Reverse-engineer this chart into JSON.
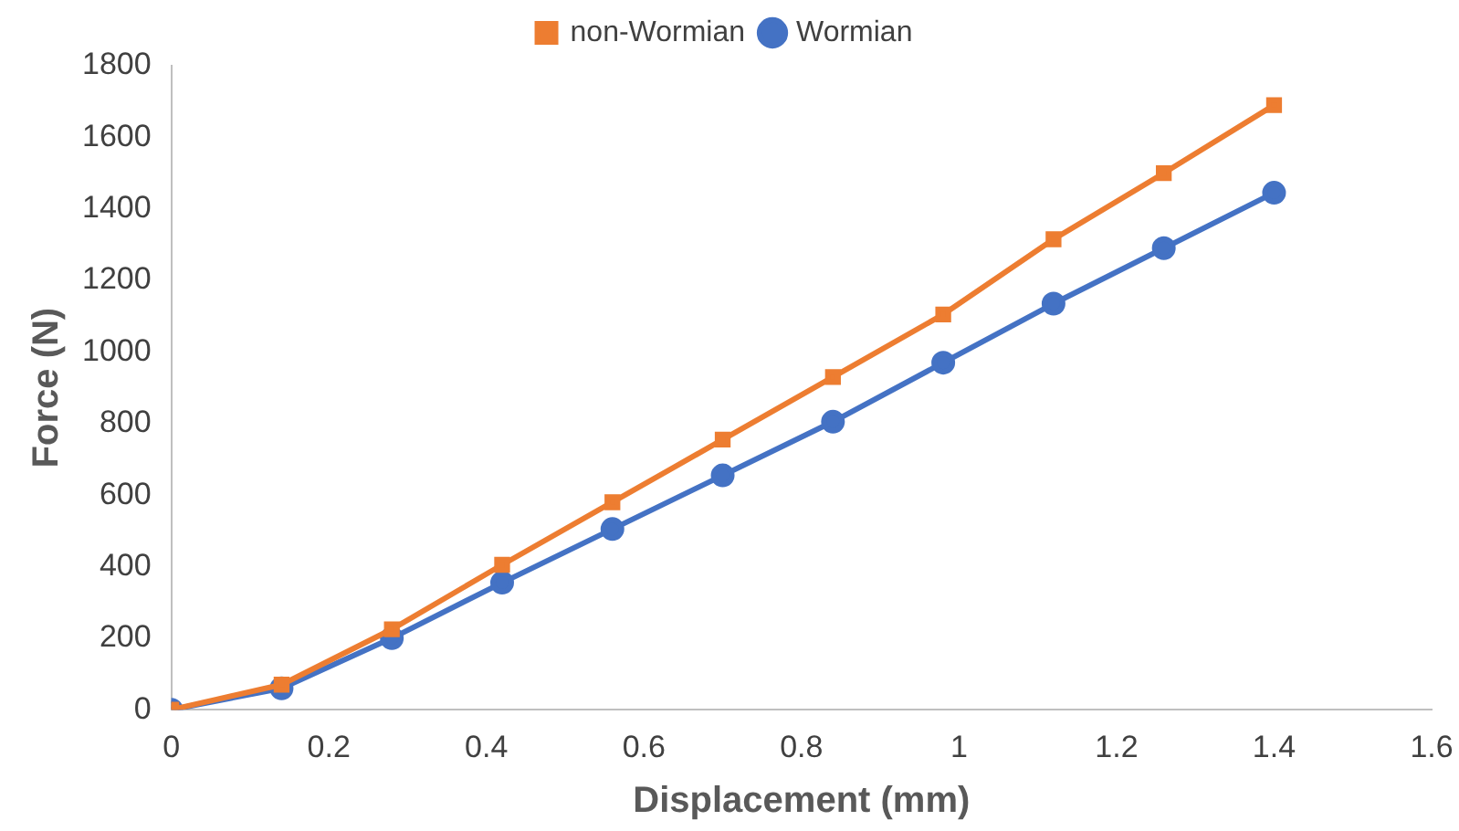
{
  "chart_data": {
    "type": "line",
    "xlabel": "Displacement (mm)",
    "ylabel": "Force (N)",
    "x": [
      0,
      0.14,
      0.28,
      0.42,
      0.56,
      0.7,
      0.84,
      0.98,
      1.12,
      1.26,
      1.4
    ],
    "series": [
      {
        "name": "Wormian",
        "color": "#4472c4",
        "marker": "circle",
        "values": [
          0,
          60,
          200,
          355,
          505,
          655,
          805,
          970,
          1135,
          1290,
          1445
        ]
      },
      {
        "name": "non-Wormian",
        "color": "#ed7d31",
        "marker": "square",
        "values": [
          0,
          70,
          225,
          405,
          580,
          755,
          930,
          1105,
          1315,
          1500,
          1690
        ]
      }
    ],
    "xlim": [
      0,
      1.6
    ],
    "xticks": [
      0,
      0.2,
      0.4,
      0.6,
      0.8,
      1,
      1.2,
      1.4,
      1.6
    ],
    "ylim": [
      0,
      1800
    ],
    "yticks": [
      0,
      200,
      400,
      600,
      800,
      1000,
      1200,
      1400,
      1600,
      1800
    ],
    "grid": false,
    "legend": "top"
  }
}
